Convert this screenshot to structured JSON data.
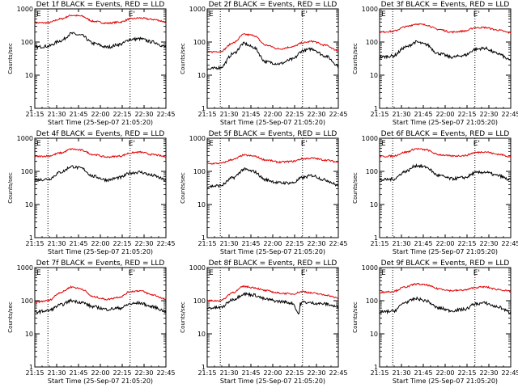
{
  "chart_data": {
    "type": "line",
    "layout_grid": "3x3",
    "y_scale": "log",
    "ylim": [
      1,
      1000
    ],
    "y_ticks": [
      "1",
      "10",
      "100",
      "1000"
    ],
    "ylabel": "Counts/sec",
    "xlabel": "Start Time (25-Sep-07 21:05:20)",
    "x_ticks": [
      "21:15",
      "21:30",
      "21:45",
      "22:00",
      "22:15",
      "22:30",
      "22:45"
    ],
    "xlim_minutes_after_start": [
      0,
      100
    ],
    "series_colors": {
      "events": "#000000",
      "lld": "#e00000"
    },
    "markers": [
      {
        "label": "E",
        "minute": 3
      },
      {
        "label": "E'",
        "minute": 74
      }
    ],
    "dotted_lines_minutes": [
      10,
      72.7
    ],
    "panels": [
      {
        "title": "Det 1f BLACK = Events, RED = LLD",
        "lld": [
          [
            0,
            380
          ],
          [
            10,
            380
          ],
          [
            20,
            500
          ],
          [
            28,
            640
          ],
          [
            35,
            610
          ],
          [
            45,
            420
          ],
          [
            55,
            370
          ],
          [
            65,
            400
          ],
          [
            73,
            500
          ],
          [
            80,
            530
          ],
          [
            90,
            480
          ],
          [
            100,
            410
          ]
        ],
        "events": [
          [
            0,
            70
          ],
          [
            10,
            75
          ],
          [
            20,
            110
          ],
          [
            28,
            180
          ],
          [
            35,
            160
          ],
          [
            45,
            90
          ],
          [
            55,
            70
          ],
          [
            65,
            85
          ],
          [
            73,
            120
          ],
          [
            80,
            125
          ],
          [
            90,
            100
          ],
          [
            100,
            72
          ]
        ]
      },
      {
        "title": "Det 2f BLACK = Events, RED = LLD",
        "lld": [
          [
            0,
            50
          ],
          [
            10,
            52
          ],
          [
            20,
            95
          ],
          [
            28,
            170
          ],
          [
            35,
            160
          ],
          [
            45,
            80
          ],
          [
            55,
            62
          ],
          [
            65,
            72
          ],
          [
            73,
            95
          ],
          [
            80,
            105
          ],
          [
            90,
            80
          ],
          [
            100,
            55
          ]
        ],
        "events": [
          [
            0,
            15
          ],
          [
            10,
            17
          ],
          [
            20,
            45
          ],
          [
            28,
            90
          ],
          [
            35,
            70
          ],
          [
            45,
            25
          ],
          [
            55,
            22
          ],
          [
            65,
            30
          ],
          [
            73,
            55
          ],
          [
            80,
            62
          ],
          [
            90,
            38
          ],
          [
            100,
            20
          ]
        ]
      },
      {
        "title": "Det 3f BLACK = Events, RED = LLD",
        "lld": [
          [
            0,
            200
          ],
          [
            10,
            210
          ],
          [
            20,
            290
          ],
          [
            28,
            350
          ],
          [
            35,
            330
          ],
          [
            45,
            240
          ],
          [
            55,
            200
          ],
          [
            65,
            215
          ],
          [
            73,
            270
          ],
          [
            80,
            275
          ],
          [
            90,
            230
          ],
          [
            100,
            190
          ]
        ],
        "events": [
          [
            0,
            35
          ],
          [
            10,
            38
          ],
          [
            20,
            70
          ],
          [
            28,
            100
          ],
          [
            35,
            85
          ],
          [
            45,
            45
          ],
          [
            55,
            35
          ],
          [
            65,
            40
          ],
          [
            73,
            60
          ],
          [
            80,
            65
          ],
          [
            90,
            45
          ],
          [
            100,
            28
          ]
        ]
      },
      {
        "title": "Det 4f BLACK = Events, RED = LLD",
        "lld": [
          [
            0,
            280
          ],
          [
            10,
            290
          ],
          [
            20,
            360
          ],
          [
            28,
            470
          ],
          [
            35,
            440
          ],
          [
            45,
            320
          ],
          [
            55,
            270
          ],
          [
            65,
            290
          ],
          [
            73,
            360
          ],
          [
            80,
            380
          ],
          [
            90,
            320
          ],
          [
            100,
            280
          ]
        ],
        "events": [
          [
            0,
            55
          ],
          [
            10,
            58
          ],
          [
            20,
            95
          ],
          [
            28,
            140
          ],
          [
            35,
            125
          ],
          [
            45,
            70
          ],
          [
            55,
            55
          ],
          [
            65,
            65
          ],
          [
            73,
            90
          ],
          [
            80,
            95
          ],
          [
            90,
            75
          ],
          [
            100,
            55
          ]
        ]
      },
      {
        "title": "Det 5f BLACK = Events, RED = LLD",
        "lld": [
          [
            0,
            170
          ],
          [
            10,
            175
          ],
          [
            20,
            230
          ],
          [
            28,
            310
          ],
          [
            35,
            290
          ],
          [
            45,
            220
          ],
          [
            55,
            190
          ],
          [
            65,
            200
          ],
          [
            73,
            240
          ],
          [
            80,
            250
          ],
          [
            90,
            220
          ],
          [
            100,
            190
          ]
        ],
        "events": [
          [
            0,
            35
          ],
          [
            10,
            37
          ],
          [
            20,
            65
          ],
          [
            28,
            115
          ],
          [
            35,
            100
          ],
          [
            45,
            55
          ],
          [
            55,
            45
          ],
          [
            65,
            45
          ],
          [
            73,
            65
          ],
          [
            80,
            75
          ],
          [
            90,
            55
          ],
          [
            100,
            38
          ]
        ]
      },
      {
        "title": "Det 6f BLACK = Events, RED = LLD",
        "lld": [
          [
            0,
            280
          ],
          [
            10,
            290
          ],
          [
            20,
            380
          ],
          [
            28,
            480
          ],
          [
            35,
            450
          ],
          [
            45,
            320
          ],
          [
            55,
            290
          ],
          [
            65,
            300
          ],
          [
            73,
            370
          ],
          [
            80,
            390
          ],
          [
            90,
            330
          ],
          [
            100,
            280
          ]
        ],
        "events": [
          [
            0,
            55
          ],
          [
            10,
            58
          ],
          [
            20,
            100
          ],
          [
            28,
            150
          ],
          [
            35,
            135
          ],
          [
            45,
            75
          ],
          [
            55,
            60
          ],
          [
            65,
            65
          ],
          [
            73,
            90
          ],
          [
            80,
            95
          ],
          [
            90,
            75
          ],
          [
            100,
            55
          ]
        ]
      },
      {
        "title": "Det 7f BLACK = Events, RED = LLD",
        "lld": [
          [
            0,
            90
          ],
          [
            10,
            100
          ],
          [
            20,
            180
          ],
          [
            28,
            260
          ],
          [
            35,
            230
          ],
          [
            45,
            130
          ],
          [
            55,
            110
          ],
          [
            65,
            130
          ],
          [
            73,
            190
          ],
          [
            80,
            200
          ],
          [
            90,
            150
          ],
          [
            100,
            110
          ]
        ],
        "events": [
          [
            0,
            45
          ],
          [
            10,
            50
          ],
          [
            20,
            75
          ],
          [
            28,
            100
          ],
          [
            35,
            90
          ],
          [
            45,
            65
          ],
          [
            55,
            55
          ],
          [
            65,
            60
          ],
          [
            73,
            80
          ],
          [
            80,
            85
          ],
          [
            90,
            65
          ],
          [
            100,
            48
          ]
        ]
      },
      {
        "title": "Det 8f BLACK = Events, RED = LLD",
        "lld": [
          [
            0,
            100
          ],
          [
            10,
            100
          ],
          [
            20,
            180
          ],
          [
            28,
            270
          ],
          [
            35,
            250
          ],
          [
            45,
            200
          ],
          [
            55,
            170
          ],
          [
            65,
            160
          ],
          [
            73,
            190
          ],
          [
            80,
            170
          ],
          [
            90,
            150
          ],
          [
            100,
            120
          ]
        ],
        "events": [
          [
            0,
            60
          ],
          [
            10,
            62
          ],
          [
            20,
            110
          ],
          [
            28,
            160
          ],
          [
            35,
            150
          ],
          [
            45,
            110
          ],
          [
            55,
            95
          ],
          [
            65,
            85
          ],
          [
            70,
            40
          ],
          [
            71,
            80
          ],
          [
            73,
            90
          ],
          [
            80,
            85
          ],
          [
            90,
            80
          ],
          [
            100,
            65
          ]
        ]
      },
      {
        "title": "Det 9f BLACK = Events, RED = LLD",
        "lld": [
          [
            0,
            180
          ],
          [
            10,
            190
          ],
          [
            20,
            260
          ],
          [
            28,
            320
          ],
          [
            35,
            300
          ],
          [
            45,
            230
          ],
          [
            55,
            200
          ],
          [
            65,
            210
          ],
          [
            73,
            250
          ],
          [
            80,
            260
          ],
          [
            90,
            220
          ],
          [
            100,
            190
          ]
        ],
        "events": [
          [
            0,
            45
          ],
          [
            10,
            48
          ],
          [
            20,
            90
          ],
          [
            28,
            115
          ],
          [
            35,
            100
          ],
          [
            45,
            60
          ],
          [
            55,
            50
          ],
          [
            65,
            55
          ],
          [
            73,
            80
          ],
          [
            80,
            85
          ],
          [
            90,
            65
          ],
          [
            100,
            45
          ]
        ]
      }
    ]
  }
}
